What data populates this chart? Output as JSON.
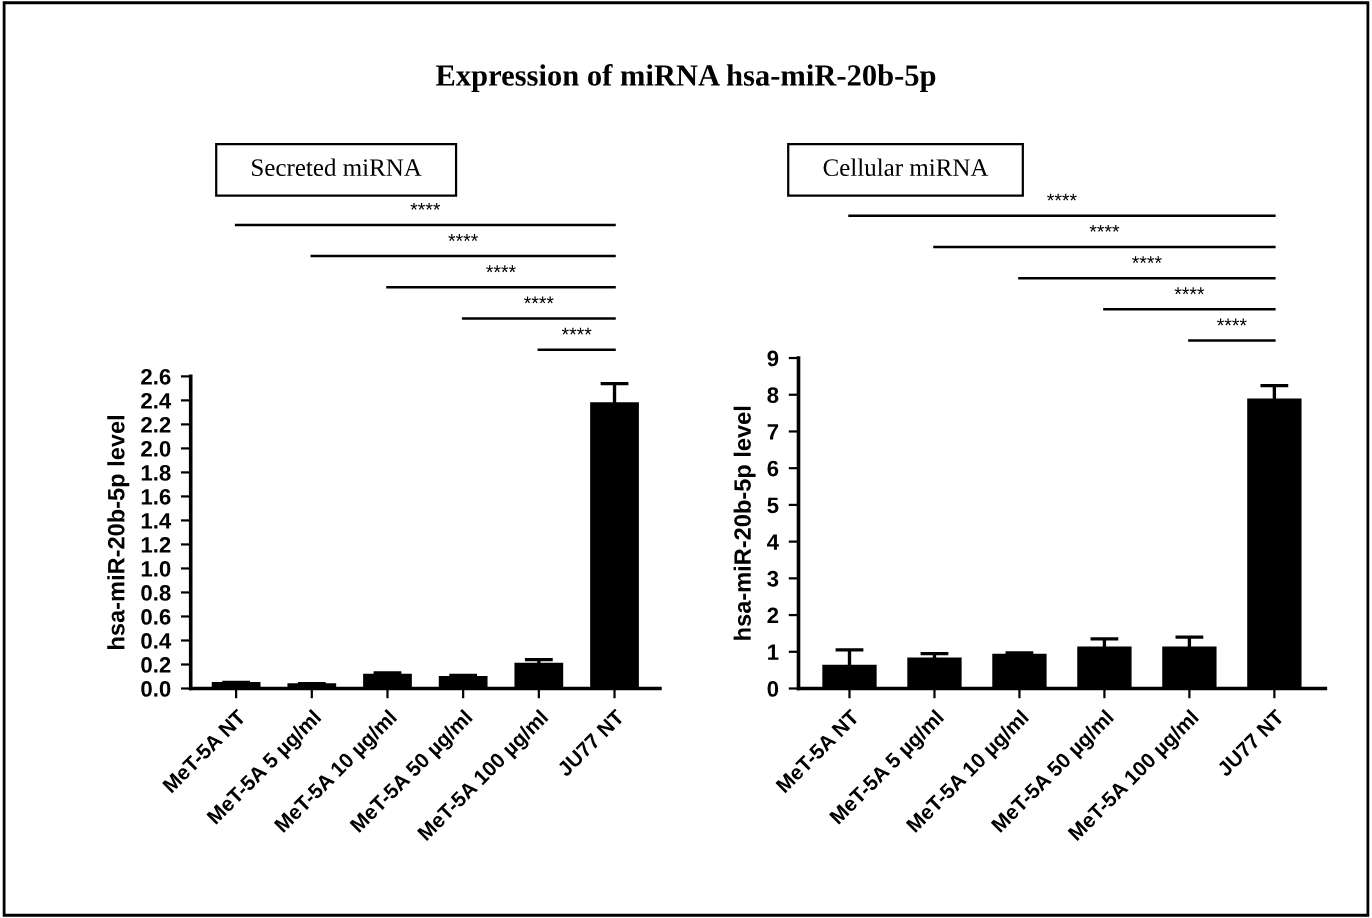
{
  "chart_data": [
    {
      "type": "bar",
      "title": "Expression of miRNA hsa-miR-20b-5p",
      "subtitle": "Secreted miRNA",
      "ylabel": "hsa-miR-20b-5p level",
      "categories": [
        "MeT-5A NT",
        "MeT-5A 5 µg/ml",
        "MeT-5A 10 µg/ml",
        "MeT-5A 50 µg/ml",
        "MeT-5A 100 µg/ml",
        "JU77 NT"
      ],
      "values": [
        0.04,
        0.03,
        0.11,
        0.09,
        0.2,
        2.37
      ],
      "errors": [
        0.01,
        0.01,
        0.02,
        0.02,
        0.04,
        0.17
      ],
      "colors": [
        "#000000",
        "#000000",
        "#000000",
        "#000000",
        "#000000",
        "#000000"
      ],
      "ylim": [
        0,
        2.6
      ],
      "yticks": [
        {
          "value": 0,
          "label": "0.0"
        },
        0.2,
        0.4,
        0.6,
        0.8,
        {
          "value": 1,
          "label": "1.0"
        },
        1.2,
        1.4,
        1.6,
        1.8,
        {
          "value": 2,
          "label": "2.0"
        },
        2.2,
        2.4,
        2.6
      ],
      "annotations": [
        "****",
        "****",
        "****",
        "****",
        "****"
      ],
      "grid": false,
      "legend": false
    },
    {
      "type": "bar",
      "subtitle": "Cellular miRNA",
      "ylabel": "hsa-miR-20b-5p level",
      "categories": [
        "MeT-5A NT",
        "MeT-5A 5 µg/ml",
        "MeT-5A 10 µg/ml",
        "MeT-5A 50 µg/ml",
        "MeT-5A 100 µg/ml",
        "JU77 NT"
      ],
      "values": [
        0.6,
        0.8,
        0.9,
        1.1,
        1.1,
        7.85
      ],
      "errors": [
        0.45,
        0.15,
        0.07,
        0.25,
        0.3,
        0.4
      ],
      "colors": [
        "#000000",
        "#000000",
        "#000000",
        "#000000",
        "#000000",
        "#000000"
      ],
      "ylim": [
        0,
        9
      ],
      "yticks": [
        0,
        1,
        2,
        3,
        4,
        5,
        6,
        7,
        8,
        9
      ],
      "annotations": [
        "****",
        "****",
        "****",
        "****",
        "****"
      ],
      "grid": false,
      "legend": false
    }
  ]
}
